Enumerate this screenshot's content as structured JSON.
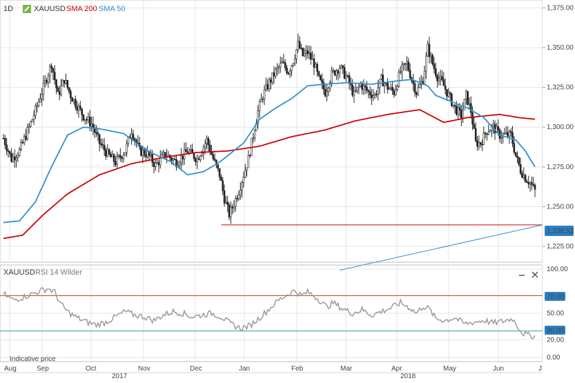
{
  "header": {
    "interval": "1D",
    "symbol": "XAUUSD",
    "sma200_label": "SMA 200",
    "sma50_label": "SMA 50"
  },
  "rsi_panel": {
    "title": "XAUUSD",
    "indicator": "RSI 14 Wilder",
    "minimize_icon": "minus-icon",
    "close_icon": "close-icon"
  },
  "footer": {
    "note": "Indicative price",
    "year_2017": "2017",
    "year_2018": "2018"
  },
  "colors": {
    "sma200": "#cc0000",
    "sma50": "#2f8fd0",
    "candle": "#222222",
    "support": "#cc0000",
    "trendline": "#2f8fd0",
    "rsi": "#9a9a9a",
    "rsi_upper": "#c0392b",
    "rsi_lower": "#27ae60",
    "price_tag": "#2a7fc1"
  },
  "chart_data": [
    {
      "type": "candlestick",
      "symbol": "XAUUSD",
      "interval": "1D",
      "yaxis": {
        "ticks": [
          "1,225.00",
          "1,250.00",
          "1,275.00",
          "1,300.00",
          "1,325.00",
          "1,350.00",
          "1,375.00"
        ],
        "ylim": [
          1215,
          1380
        ]
      },
      "xaxis": {
        "month_labels": [
          "Aug",
          "Sep",
          "Oct",
          "Nov",
          "Dec",
          "Jan",
          "Feb",
          "Mar",
          "Apr",
          "May",
          "Jun",
          "J"
        ],
        "year_labels": [
          "2017",
          "2018"
        ]
      },
      "price_tag": "1,238.52",
      "close_anchors": [
        [
          0,
          1293
        ],
        [
          5,
          1280
        ],
        [
          10,
          1285
        ],
        [
          18,
          1305
        ],
        [
          25,
          1325
        ],
        [
          30,
          1340
        ],
        [
          34,
          1320
        ],
        [
          38,
          1330
        ],
        [
          42,
          1320
        ],
        [
          50,
          1307
        ],
        [
          55,
          1302
        ],
        [
          60,
          1290
        ],
        [
          65,
          1283
        ],
        [
          70,
          1278
        ],
        [
          76,
          1285
        ],
        [
          80,
          1298
        ],
        [
          85,
          1285
        ],
        [
          90,
          1283
        ],
        [
          95,
          1276
        ],
        [
          101,
          1283
        ],
        [
          108,
          1278
        ],
        [
          115,
          1285
        ],
        [
          121,
          1280
        ],
        [
          127,
          1292
        ],
        [
          131,
          1280
        ],
        [
          135,
          1270
        ],
        [
          138,
          1255
        ],
        [
          141,
          1245
        ],
        [
          144,
          1252
        ],
        [
          147,
          1260
        ],
        [
          150,
          1270
        ],
        [
          153,
          1280
        ],
        [
          156,
          1295
        ],
        [
          159,
          1310
        ],
        [
          162,
          1320
        ],
        [
          166,
          1328
        ],
        [
          170,
          1335
        ],
        [
          174,
          1340
        ],
        [
          178,
          1335
        ],
        [
          181,
          1342
        ],
        [
          184,
          1352
        ],
        [
          187,
          1345
        ],
        [
          190,
          1347
        ],
        [
          194,
          1340
        ],
        [
          197,
          1330
        ],
        [
          201,
          1322
        ],
        [
          205,
          1333
        ],
        [
          210,
          1338
        ],
        [
          215,
          1330
        ],
        [
          219,
          1320
        ],
        [
          223,
          1327
        ],
        [
          228,
          1322
        ],
        [
          232,
          1320
        ],
        [
          236,
          1330
        ],
        [
          240,
          1325
        ],
        [
          244,
          1322
        ],
        [
          248,
          1335
        ],
        [
          252,
          1340
        ],
        [
          255,
          1330
        ],
        [
          258,
          1322
        ],
        [
          262,
          1330
        ],
        [
          265,
          1350
        ],
        [
          268,
          1340
        ],
        [
          271,
          1332
        ],
        [
          274,
          1328
        ],
        [
          278,
          1320
        ],
        [
          282,
          1312
        ],
        [
          286,
          1307
        ],
        [
          289,
          1320
        ],
        [
          292,
          1310
        ],
        [
          295,
          1290
        ],
        [
          298,
          1290
        ],
        [
          302,
          1298
        ],
        [
          306,
          1300
        ],
        [
          310,
          1295
        ],
        [
          313,
          1295
        ],
        [
          317,
          1295
        ],
        [
          320,
          1282
        ],
        [
          323,
          1273
        ],
        [
          326,
          1268
        ],
        [
          329,
          1265
        ],
        [
          332,
          1260
        ]
      ],
      "sma200_anchors": [
        [
          0,
          1230
        ],
        [
          12,
          1232
        ],
        [
          25,
          1245
        ],
        [
          40,
          1258
        ],
        [
          60,
          1270
        ],
        [
          80,
          1277
        ],
        [
          100,
          1281
        ],
        [
          120,
          1284
        ],
        [
          140,
          1285
        ],
        [
          160,
          1288
        ],
        [
          180,
          1294
        ],
        [
          200,
          1298
        ],
        [
          220,
          1304
        ],
        [
          240,
          1308
        ],
        [
          260,
          1311
        ],
        [
          275,
          1303
        ],
        [
          290,
          1306
        ],
        [
          310,
          1308
        ],
        [
          322,
          1306
        ],
        [
          332,
          1305
        ]
      ],
      "sma50_anchors": [
        [
          0,
          1240
        ],
        [
          10,
          1241
        ],
        [
          20,
          1253
        ],
        [
          30,
          1275
        ],
        [
          40,
          1295
        ],
        [
          50,
          1300
        ],
        [
          60,
          1299
        ],
        [
          75,
          1296
        ],
        [
          90,
          1285
        ],
        [
          105,
          1278
        ],
        [
          115,
          1270
        ],
        [
          125,
          1272
        ],
        [
          135,
          1278
        ],
        [
          150,
          1290
        ],
        [
          160,
          1305
        ],
        [
          170,
          1312
        ],
        [
          180,
          1318
        ],
        [
          190,
          1326
        ],
        [
          200,
          1327
        ],
        [
          215,
          1328
        ],
        [
          230,
          1327
        ],
        [
          245,
          1329
        ],
        [
          255,
          1330
        ],
        [
          265,
          1326
        ],
        [
          270,
          1320
        ],
        [
          280,
          1316
        ],
        [
          290,
          1312
        ],
        [
          300,
          1306
        ],
        [
          310,
          1295
        ],
        [
          320,
          1292
        ],
        [
          326,
          1285
        ],
        [
          332,
          1275
        ]
      ],
      "support_level": 1238.52,
      "trendline": {
        "from": [
          1210,
          215
        ],
        "to": [
          1238.52,
          332
        ]
      },
      "rsi": {
        "indicator": "RSI 14 Wilder",
        "yaxis": {
          "ticks": [
            "0.00",
            "20.00",
            "50.00",
            "70.00",
            "100.00"
          ],
          "ylim": [
            0,
            100
          ]
        },
        "levels": [
          70,
          30
        ],
        "level_tags": [
          "70.00",
          "30.00"
        ],
        "anchors": [
          [
            0,
            72
          ],
          [
            6,
            65
          ],
          [
            12,
            68
          ],
          [
            18,
            72
          ],
          [
            24,
            76
          ],
          [
            28,
            78
          ],
          [
            32,
            74
          ],
          [
            36,
            60
          ],
          [
            40,
            52
          ],
          [
            46,
            45
          ],
          [
            52,
            40
          ],
          [
            58,
            37
          ],
          [
            64,
            40
          ],
          [
            70,
            46
          ],
          [
            76,
            52
          ],
          [
            82,
            48
          ],
          [
            88,
            46
          ],
          [
            94,
            42
          ],
          [
            100,
            48
          ],
          [
            106,
            52
          ],
          [
            112,
            50
          ],
          [
            118,
            46
          ],
          [
            124,
            48
          ],
          [
            130,
            50
          ],
          [
            136,
            46
          ],
          [
            142,
            38
          ],
          [
            148,
            33
          ],
          [
            154,
            36
          ],
          [
            160,
            45
          ],
          [
            166,
            55
          ],
          [
            172,
            65
          ],
          [
            178,
            72
          ],
          [
            182,
            76
          ],
          [
            186,
            70
          ],
          [
            190,
            74
          ],
          [
            194,
            70
          ],
          [
            198,
            64
          ],
          [
            202,
            57
          ],
          [
            206,
            62
          ],
          [
            212,
            55
          ],
          [
            218,
            50
          ],
          [
            224,
            54
          ],
          [
            230,
            48
          ],
          [
            236,
            52
          ],
          [
            242,
            56
          ],
          [
            248,
            62
          ],
          [
            254,
            56
          ],
          [
            258,
            50
          ],
          [
            262,
            58
          ],
          [
            266,
            55
          ],
          [
            270,
            44
          ],
          [
            276,
            42
          ],
          [
            282,
            45
          ],
          [
            288,
            38
          ],
          [
            294,
            40
          ],
          [
            300,
            42
          ],
          [
            306,
            39
          ],
          [
            312,
            41
          ],
          [
            318,
            44
          ],
          [
            324,
            28
          ],
          [
            328,
            25
          ],
          [
            332,
            24
          ]
        ]
      }
    }
  ]
}
